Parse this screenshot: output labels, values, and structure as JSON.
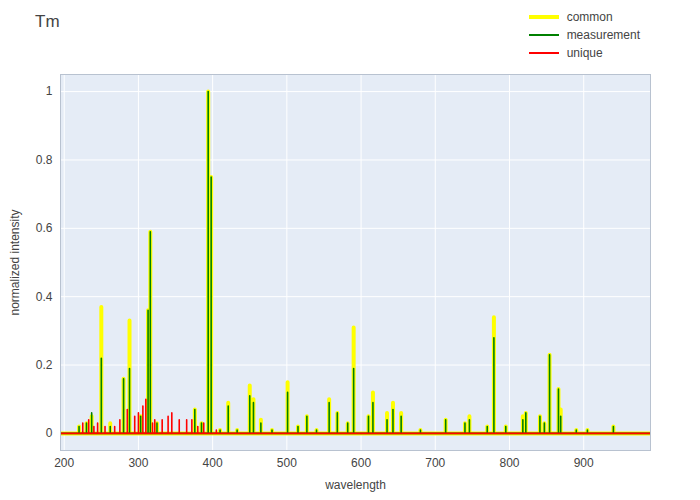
{
  "chart_data": {
    "type": "line",
    "title": "Tm",
    "x_label": "wavelength",
    "y_label": "normalized intensity",
    "x": [
      195,
      220,
      225,
      230,
      233,
      237,
      240,
      245,
      250,
      255,
      262,
      268,
      275,
      280,
      285,
      288,
      295,
      300,
      303,
      306,
      310,
      313,
      316,
      319,
      322,
      325,
      332,
      340,
      345,
      355,
      365,
      372,
      376,
      380,
      385,
      388,
      394,
      398,
      405,
      410,
      421,
      433,
      450,
      455,
      465,
      480,
      501,
      515,
      527,
      540,
      557,
      568,
      582,
      590,
      610,
      616,
      635,
      643,
      654,
      680,
      714,
      740,
      746,
      770,
      779,
      795,
      818,
      822,
      841,
      847,
      854,
      866,
      869,
      890,
      905,
      940,
      990
    ],
    "series": [
      {
        "name": "common",
        "color": "#ffff00",
        "values": [
          0,
          0.02,
          0,
          0.03,
          0,
          0.05,
          0,
          0,
          0.37,
          0,
          0.03,
          0,
          0,
          0.16,
          0,
          0.33,
          0,
          0,
          0.05,
          0,
          0,
          0.36,
          0.59,
          0,
          0,
          0.03,
          0,
          0,
          0,
          0,
          0,
          0,
          0.07,
          0,
          0.03,
          0,
          1,
          0.75,
          0,
          0.01,
          0.09,
          0.01,
          0.14,
          0.1,
          0.04,
          0.01,
          0.15,
          0.02,
          0.05,
          0.01,
          0.1,
          0.06,
          0.03,
          0.31,
          0.05,
          0.12,
          0.06,
          0.09,
          0.06,
          0.01,
          0.04,
          0.03,
          0.05,
          0.02,
          0.34,
          0.02,
          0.05,
          0.06,
          0.05,
          0.03,
          0.23,
          0.13,
          0.07,
          0.01,
          0.01,
          0.02,
          0
        ]
      },
      {
        "name": "measurement",
        "color": "#008000",
        "values": [
          0,
          0.02,
          0,
          0.03,
          0,
          0.06,
          0,
          0,
          0.22,
          0,
          0.02,
          0,
          0,
          0.16,
          0,
          0.19,
          0,
          0,
          0.05,
          0,
          0,
          0.36,
          0.59,
          0,
          0,
          0.03,
          0,
          0,
          0,
          0,
          0,
          0,
          0.07,
          0,
          0.03,
          0,
          1,
          0.75,
          0,
          0.01,
          0.08,
          0.01,
          0.11,
          0.09,
          0.03,
          0.01,
          0.12,
          0.02,
          0.05,
          0.01,
          0.09,
          0.06,
          0.03,
          0.19,
          0.05,
          0.09,
          0.04,
          0.07,
          0.05,
          0.01,
          0.04,
          0.03,
          0.04,
          0.02,
          0.28,
          0.02,
          0.04,
          0.06,
          0.05,
          0.03,
          0.23,
          0.13,
          0.05,
          0.01,
          0.01,
          0.02,
          0
        ]
      },
      {
        "name": "unique",
        "color": "#ff0000",
        "values": [
          0,
          0,
          0.03,
          0,
          0.04,
          0,
          0.02,
          0.03,
          0,
          0.02,
          0,
          0.02,
          0.04,
          0,
          0.07,
          0,
          0.05,
          0.06,
          0,
          0.08,
          0.1,
          0,
          0,
          0.03,
          0.04,
          0,
          0.04,
          0.05,
          0.06,
          0.04,
          0.04,
          0.04,
          0,
          0.02,
          0,
          0.03,
          0,
          0,
          0.01,
          0,
          0,
          0,
          0,
          0,
          0,
          0,
          0,
          0,
          0,
          0,
          0,
          0,
          0,
          0,
          0,
          0,
          0,
          0,
          0,
          0,
          0,
          0,
          0,
          0,
          0,
          0,
          0,
          0,
          0,
          0,
          0,
          0,
          0,
          0,
          0,
          0,
          0
        ]
      }
    ],
    "xlim": [
      195,
      990
    ],
    "xticks": [
      200,
      300,
      400,
      500,
      600,
      700,
      800,
      900
    ],
    "ylim": [
      -0.05,
      1.05
    ],
    "yticks": [
      0,
      0.2,
      0.4,
      0.6,
      0.8,
      1
    ],
    "grid": true,
    "legend": "top-right"
  }
}
